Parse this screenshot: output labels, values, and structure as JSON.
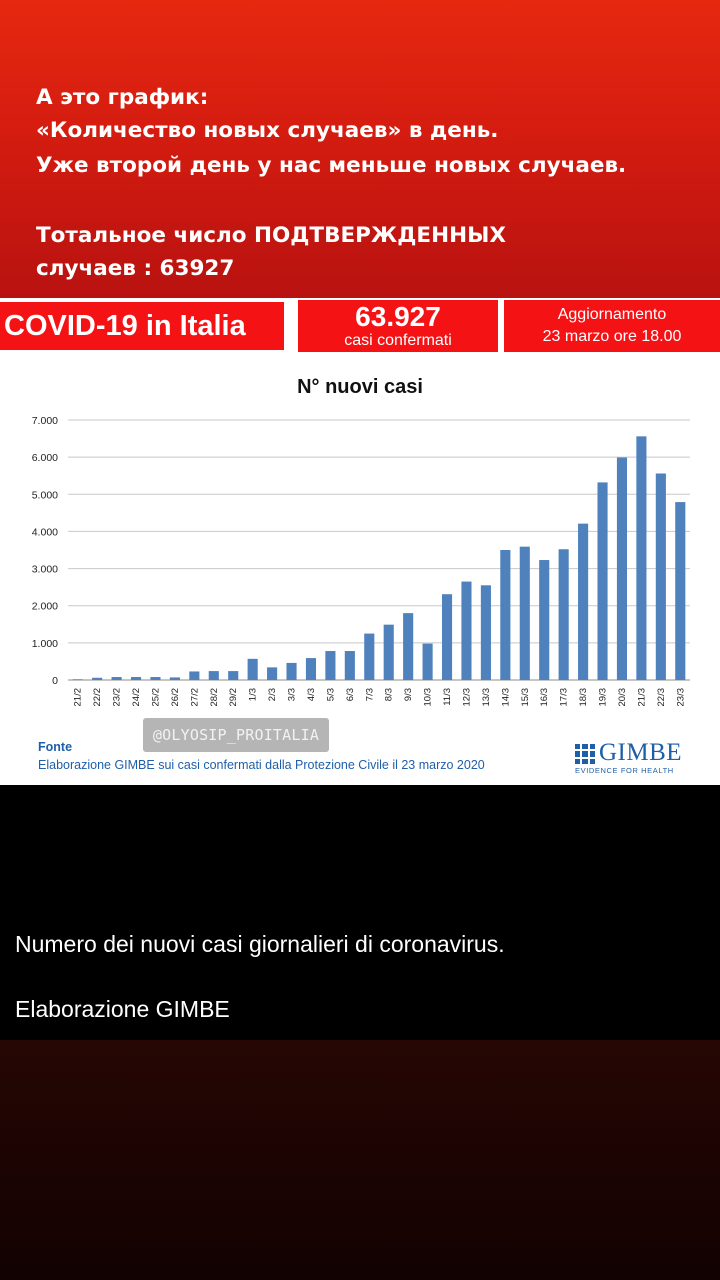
{
  "caption": {
    "lines": [
      "А это график:",
      "«Количество новых случаев» в день.",
      "Уже второй день у нас меньше новых случаев.",
      "Тотальное число ПОДТВЕРЖДЕННЫХ",
      "случаев : 63927"
    ]
  },
  "header": {
    "title": "COVID-19 in Italia",
    "count": "63.927",
    "count_label": "casi confermati",
    "update_title": "Aggiornamento",
    "update_date": "23 marzo ore 18.00"
  },
  "watermark": "@OLYOSIP_PROITALIA",
  "source": {
    "label": "Fonte",
    "text": "Elaborazione GIMBE sui casi confermati dalla Protezione Civile il 23 marzo 2020"
  },
  "logo": {
    "name": "GIMBE",
    "tagline": "EVIDENCE FOR HEALTH"
  },
  "bottom_text": {
    "line1": "Numero dei nuovi casi giornalieri di coronavirus.",
    "line2": "Elaborazione GIMBE"
  },
  "colors": {
    "bar": "#4f81bd",
    "header_red": "#f41215",
    "brand_blue": "#1f5fa8"
  },
  "chart_data": {
    "type": "bar",
    "title": "N° nuovi casi",
    "xlabel": "",
    "ylabel": "",
    "ylim": [
      0,
      7000
    ],
    "yticks": [
      "0",
      "1.000",
      "2.000",
      "3.000",
      "4.000",
      "5.000",
      "6.000",
      "7.000"
    ],
    "grid": true,
    "categories": [
      "21/2",
      "22/2",
      "23/2",
      "24/2",
      "25/2",
      "26/2",
      "27/2",
      "28/2",
      "29/2",
      "1/3",
      "2/3",
      "3/3",
      "4/3",
      "5/3",
      "6/3",
      "7/3",
      "8/3",
      "9/3",
      "10/3",
      "11/3",
      "12/3",
      "13/3",
      "14/3",
      "15/3",
      "16/3",
      "17/3",
      "18/3",
      "19/3",
      "20/3",
      "21/3",
      "22/3",
      "23/3"
    ],
    "values": [
      20,
      60,
      80,
      80,
      80,
      70,
      230,
      240,
      240,
      570,
      340,
      460,
      590,
      780,
      780,
      1250,
      1490,
      1800,
      980,
      2310,
      2650,
      2550,
      3500,
      3590,
      3230,
      3520,
      4210,
      5320,
      5990,
      6560,
      5560,
      4790
    ]
  }
}
